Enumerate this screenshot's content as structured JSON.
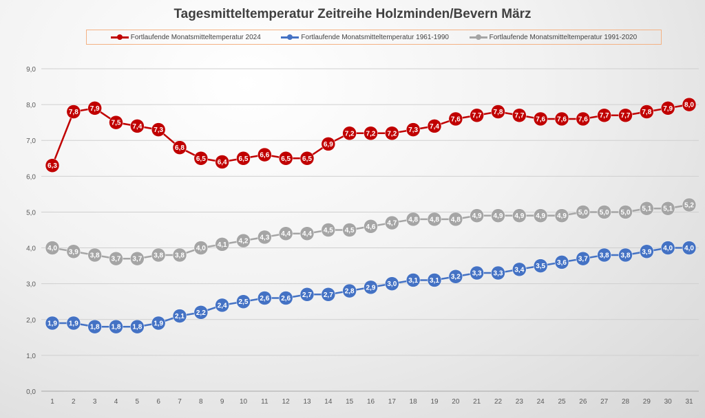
{
  "chart_data": {
    "type": "line",
    "title": "Tagesmitteltemperatur Zeitreihe Holzminden/Bevern März",
    "xlabel": "",
    "ylabel": "",
    "x": [
      1,
      2,
      3,
      4,
      5,
      6,
      7,
      8,
      9,
      10,
      11,
      12,
      13,
      14,
      15,
      16,
      17,
      18,
      19,
      20,
      21,
      22,
      23,
      24,
      25,
      26,
      27,
      28,
      29,
      30,
      31
    ],
    "ylim": [
      0,
      9
    ],
    "yticks": [
      "0,0",
      "1,0",
      "2,0",
      "3,0",
      "4,0",
      "5,0",
      "6,0",
      "7,0",
      "8,0",
      "9,0"
    ],
    "grid": true,
    "legend_position": "top",
    "series": [
      {
        "name": "Fortlaufende Monatsmitteltemperatur 2024",
        "color": "#c00000",
        "values": [
          6.3,
          7.8,
          7.9,
          7.5,
          7.4,
          7.3,
          6.8,
          6.5,
          6.4,
          6.5,
          6.6,
          6.5,
          6.5,
          6.9,
          7.2,
          7.2,
          7.2,
          7.3,
          7.4,
          7.6,
          7.7,
          7.8,
          7.7,
          7.6,
          7.6,
          7.6,
          7.7,
          7.7,
          7.8,
          7.9,
          8.0
        ]
      },
      {
        "name": "Fortlaufende Monatsmitteltemperatur 1961-1990",
        "color": "#4472c4",
        "values": [
          1.9,
          1.9,
          1.8,
          1.8,
          1.8,
          1.9,
          2.1,
          2.2,
          2.4,
          2.5,
          2.6,
          2.6,
          2.7,
          2.7,
          2.8,
          2.9,
          3.0,
          3.1,
          3.1,
          3.2,
          3.3,
          3.3,
          3.4,
          3.5,
          3.6,
          3.7,
          3.8,
          3.8,
          3.9,
          4.0,
          4.0
        ]
      },
      {
        "name": "Fortlaufende Monatsmitteltemperatur 1991-2020",
        "color": "#a5a5a5",
        "values": [
          4.0,
          3.9,
          3.8,
          3.7,
          3.7,
          3.8,
          3.8,
          4.0,
          4.1,
          4.2,
          4.3,
          4.4,
          4.4,
          4.5,
          4.5,
          4.6,
          4.7,
          4.8,
          4.8,
          4.8,
          4.9,
          4.9,
          4.9,
          4.9,
          4.9,
          5.0,
          5.0,
          5.0,
          5.1,
          5.1,
          5.2
        ]
      }
    ]
  }
}
